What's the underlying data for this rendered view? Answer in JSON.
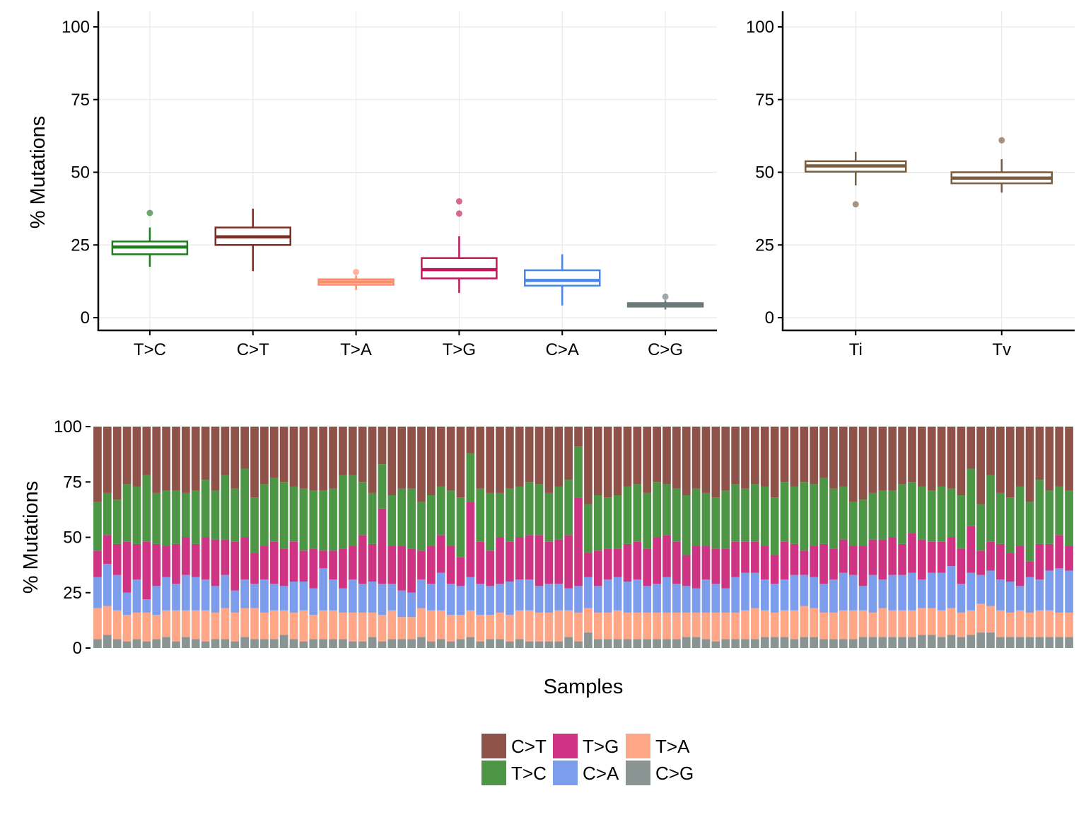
{
  "chart_data": [
    {
      "type": "boxplot",
      "ylabel": "% Mutations",
      "xlabel": "",
      "ylim": [
        0,
        100
      ],
      "yticks": [
        "0",
        "25",
        "50",
        "75",
        "100"
      ],
      "grid": true,
      "categories": [
        "T>C",
        "C>T",
        "T>A",
        "T>G",
        "C>A",
        "C>G"
      ],
      "colors": [
        "#1E7B1E",
        "#7A2E24",
        "#FF8C69",
        "#C2185B",
        "#4A86E8",
        "#6B7B7B"
      ],
      "boxes": [
        {
          "category": "T>C",
          "whisker_low": 17.5,
          "q1": 21.8,
          "median": 24.3,
          "q3": 26.2,
          "whisker_high": 31,
          "outliers": [
            36
          ]
        },
        {
          "category": "C>T",
          "whisker_low": 16,
          "q1": 25,
          "median": 27.8,
          "q3": 31,
          "whisker_high": 37.5,
          "outliers": []
        },
        {
          "category": "T>A",
          "whisker_low": 9.5,
          "q1": 11.3,
          "median": 12.3,
          "q3": 13.2,
          "whisker_high": 14.5,
          "outliers": [
            15.7
          ]
        },
        {
          "category": "T>G",
          "whisker_low": 8.5,
          "q1": 13.5,
          "median": 16.5,
          "q3": 20.5,
          "whisker_high": 28,
          "outliers": [
            35.8,
            40
          ]
        },
        {
          "category": "C>A",
          "whisker_low": 4.2,
          "q1": 11,
          "median": 12.8,
          "q3": 16.3,
          "whisker_high": 21.8,
          "outliers": []
        },
        {
          "category": "C>G",
          "whisker_low": 2.8,
          "q1": 3.8,
          "median": 4.5,
          "q3": 5,
          "whisker_high": 6,
          "outliers": [
            7.2
          ]
        }
      ]
    },
    {
      "type": "boxplot",
      "ylabel": "",
      "xlabel": "",
      "ylim": [
        0,
        100
      ],
      "yticks": [
        "0",
        "25",
        "50",
        "75",
        "100"
      ],
      "grid": true,
      "categories": [
        "Ti",
        "Tv"
      ],
      "colors": [
        "#7A5C3E",
        "#7A5C3E"
      ],
      "boxes": [
        {
          "category": "Ti",
          "whisker_low": 45.5,
          "q1": 50.2,
          "median": 52.2,
          "q3": 53.8,
          "whisker_high": 57,
          "outliers": [
            39
          ]
        },
        {
          "category": "Tv",
          "whisker_low": 43,
          "q1": 46.2,
          "median": 48,
          "q3": 50,
          "whisker_high": 54.5,
          "outliers": [
            61
          ]
        }
      ]
    },
    {
      "type": "stacked_bar",
      "xlabel": "Samples",
      "ylabel": "% Mutations",
      "ylim": [
        0,
        100
      ],
      "yticks": [
        "0",
        "25",
        "50",
        "75",
        "100"
      ],
      "grid": false,
      "n_samples": 100,
      "series": [
        {
          "name": "C>G",
          "color": "#8A9493",
          "values": [
            4,
            6,
            4,
            3,
            4,
            3,
            4,
            5,
            3,
            5,
            4,
            3,
            4,
            4,
            3,
            5,
            4,
            4,
            4,
            6,
            4,
            3,
            4,
            4,
            4,
            4,
            3,
            3,
            5,
            3,
            4,
            4,
            4,
            5,
            3,
            4,
            3,
            4,
            5,
            3,
            4,
            4,
            3,
            4,
            3,
            3,
            3,
            3,
            5,
            3,
            7,
            4,
            4,
            4,
            4,
            4,
            4,
            4,
            4,
            4,
            5,
            5,
            4,
            3,
            4,
            4,
            4,
            4,
            5,
            5,
            5,
            4,
            5,
            5,
            4,
            4,
            4,
            4,
            5,
            5,
            5,
            5,
            5,
            5,
            6,
            6,
            5,
            6,
            5,
            6,
            7,
            7,
            5,
            5,
            5,
            5,
            5,
            5,
            5,
            5
          ]
        },
        {
          "name": "T>A",
          "color": "#FFA687",
          "values": [
            14,
            13,
            13,
            12,
            12,
            13,
            11,
            12,
            14,
            12,
            13,
            14,
            12,
            14,
            13,
            13,
            14,
            12,
            13,
            11,
            12,
            14,
            11,
            13,
            13,
            12,
            13,
            13,
            11,
            12,
            13,
            10,
            10,
            13,
            14,
            13,
            12,
            11,
            12,
            12,
            11,
            12,
            12,
            13,
            14,
            13,
            13,
            14,
            12,
            13,
            11,
            12,
            12,
            13,
            12,
            12,
            12,
            12,
            12,
            12,
            11,
            11,
            12,
            13,
            12,
            12,
            13,
            14,
            12,
            11,
            12,
            13,
            14,
            13,
            12,
            12,
            13,
            13,
            12,
            11,
            13,
            12,
            12,
            12,
            12,
            12,
            12,
            12,
            11,
            11,
            13,
            12,
            12,
            11,
            12,
            11,
            12,
            12,
            11,
            11
          ]
        },
        {
          "name": "C>A",
          "color": "#7B9DEB",
          "values": [
            14,
            19,
            16,
            10,
            15,
            6,
            13,
            15,
            12,
            16,
            15,
            14,
            12,
            15,
            10,
            13,
            11,
            15,
            12,
            11,
            14,
            13,
            12,
            19,
            14,
            11,
            15,
            13,
            14,
            14,
            12,
            12,
            11,
            13,
            12,
            17,
            14,
            13,
            15,
            14,
            13,
            13,
            15,
            14,
            14,
            12,
            13,
            12,
            10,
            12,
            14,
            12,
            15,
            15,
            14,
            15,
            12,
            13,
            16,
            13,
            12,
            11,
            15,
            13,
            11,
            16,
            17,
            16,
            14,
            13,
            14,
            16,
            14,
            14,
            13,
            15,
            17,
            16,
            11,
            17,
            13,
            16,
            16,
            17,
            13,
            16,
            17,
            19,
            13,
            17,
            13,
            16,
            14,
            14,
            11,
            16,
            14,
            18,
            20,
            19
          ]
        },
        {
          "name": "T>G",
          "color": "#CE3483",
          "values": [
            12,
            13,
            14,
            23,
            16,
            26,
            19,
            14,
            18,
            17,
            15,
            19,
            21,
            16,
            22,
            19,
            14,
            15,
            19,
            17,
            18,
            14,
            18,
            8,
            13,
            18,
            15,
            22,
            17,
            34,
            17,
            20,
            20,
            13,
            17,
            17,
            17,
            13,
            34,
            19,
            16,
            21,
            18,
            19,
            20,
            23,
            19,
            20,
            24,
            40,
            11,
            16,
            14,
            13,
            17,
            17,
            17,
            21,
            19,
            19,
            14,
            19,
            15,
            16,
            18,
            16,
            14,
            14,
            15,
            13,
            17,
            14,
            11,
            14,
            18,
            14,
            15,
            13,
            18,
            16,
            18,
            17,
            14,
            18,
            18,
            14,
            14,
            13,
            16,
            21,
            11,
            13,
            16,
            13,
            18,
            7,
            16,
            12,
            15,
            11
          ]
        },
        {
          "name": "T>C",
          "color": "#4C9646",
          "values": [
            22,
            19,
            20,
            26,
            26,
            30,
            23,
            25,
            24,
            20,
            24,
            26,
            22,
            29,
            24,
            31,
            25,
            28,
            29,
            30,
            25,
            28,
            26,
            27,
            28,
            33,
            32,
            24,
            23,
            20,
            23,
            26,
            27,
            22,
            23,
            22,
            25,
            27,
            22,
            24,
            26,
            20,
            24,
            23,
            24,
            23,
            22,
            24,
            25,
            23,
            22,
            25,
            23,
            24,
            26,
            26,
            25,
            25,
            23,
            24,
            27,
            26,
            24,
            23,
            26,
            26,
            24,
            26,
            27,
            26,
            27,
            26,
            31,
            28,
            30,
            27,
            24,
            20,
            21,
            21,
            22,
            21,
            27,
            23,
            24,
            23,
            25,
            22,
            24,
            26,
            21,
            30,
            23,
            25,
            27,
            27,
            29,
            24,
            22,
            25
          ]
        }
      ],
      "remainder_series": {
        "name": "C>T",
        "color": "#8E5248"
      }
    }
  ],
  "legend": {
    "items": [
      {
        "label": "C>T",
        "color": "#8E5248"
      },
      {
        "label": "T>G",
        "color": "#CE3483"
      },
      {
        "label": "T>A",
        "color": "#FFA687"
      },
      {
        "label": "T>C",
        "color": "#4C9646"
      },
      {
        "label": "C>A",
        "color": "#7B9DEB"
      },
      {
        "label": "C>G",
        "color": "#8A9493"
      }
    ]
  }
}
